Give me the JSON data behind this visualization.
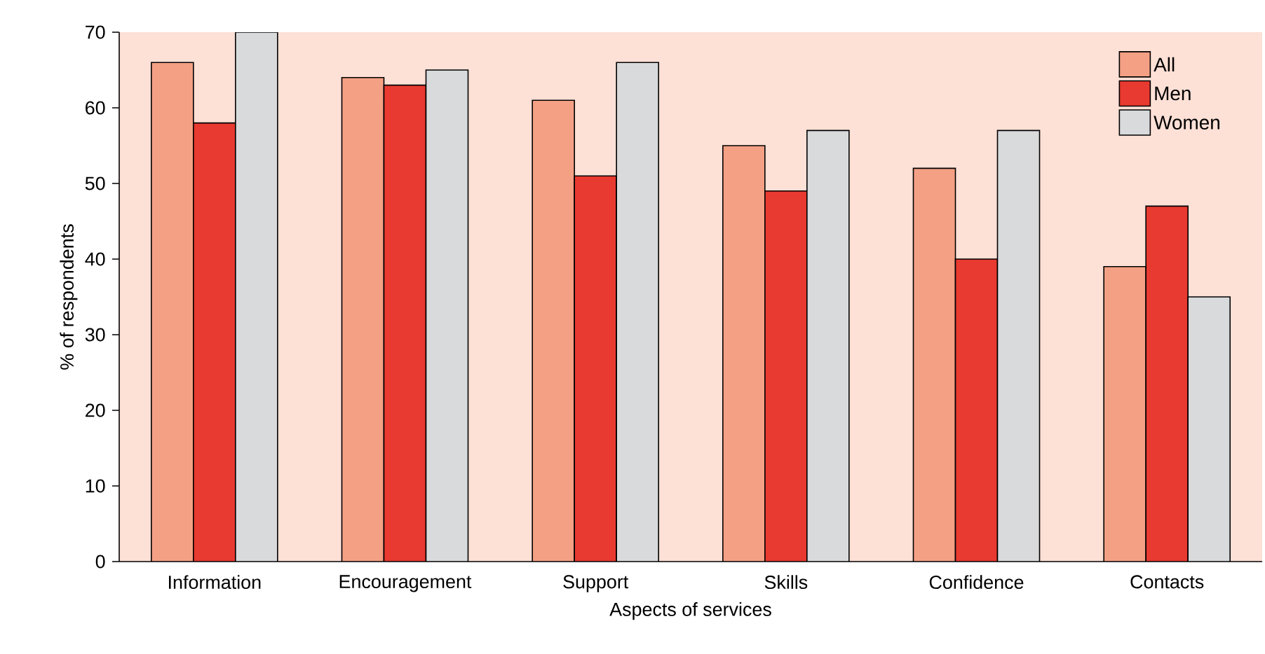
{
  "chart_data": {
    "type": "bar",
    "xlabel": "Aspects of services",
    "ylabel": "% of respondents",
    "categories": [
      "Information",
      "Encouragement",
      "Support",
      "Skills",
      "Confidence",
      "Contacts"
    ],
    "series": [
      {
        "name": "All",
        "color": "#f4a085",
        "values": [
          66,
          64,
          61,
          55,
          52,
          39
        ]
      },
      {
        "name": "Men",
        "color": "#e83a30",
        "values": [
          58,
          63,
          51,
          49,
          40,
          47
        ]
      },
      {
        "name": "Women",
        "color": "#d9dadc",
        "values": [
          70,
          65,
          66,
          57,
          57,
          35
        ]
      }
    ],
    "ylim": [
      0,
      70
    ],
    "yticks": [
      0,
      10,
      20,
      30,
      40,
      50,
      60,
      70
    ],
    "grid": false,
    "legend": "top right"
  }
}
